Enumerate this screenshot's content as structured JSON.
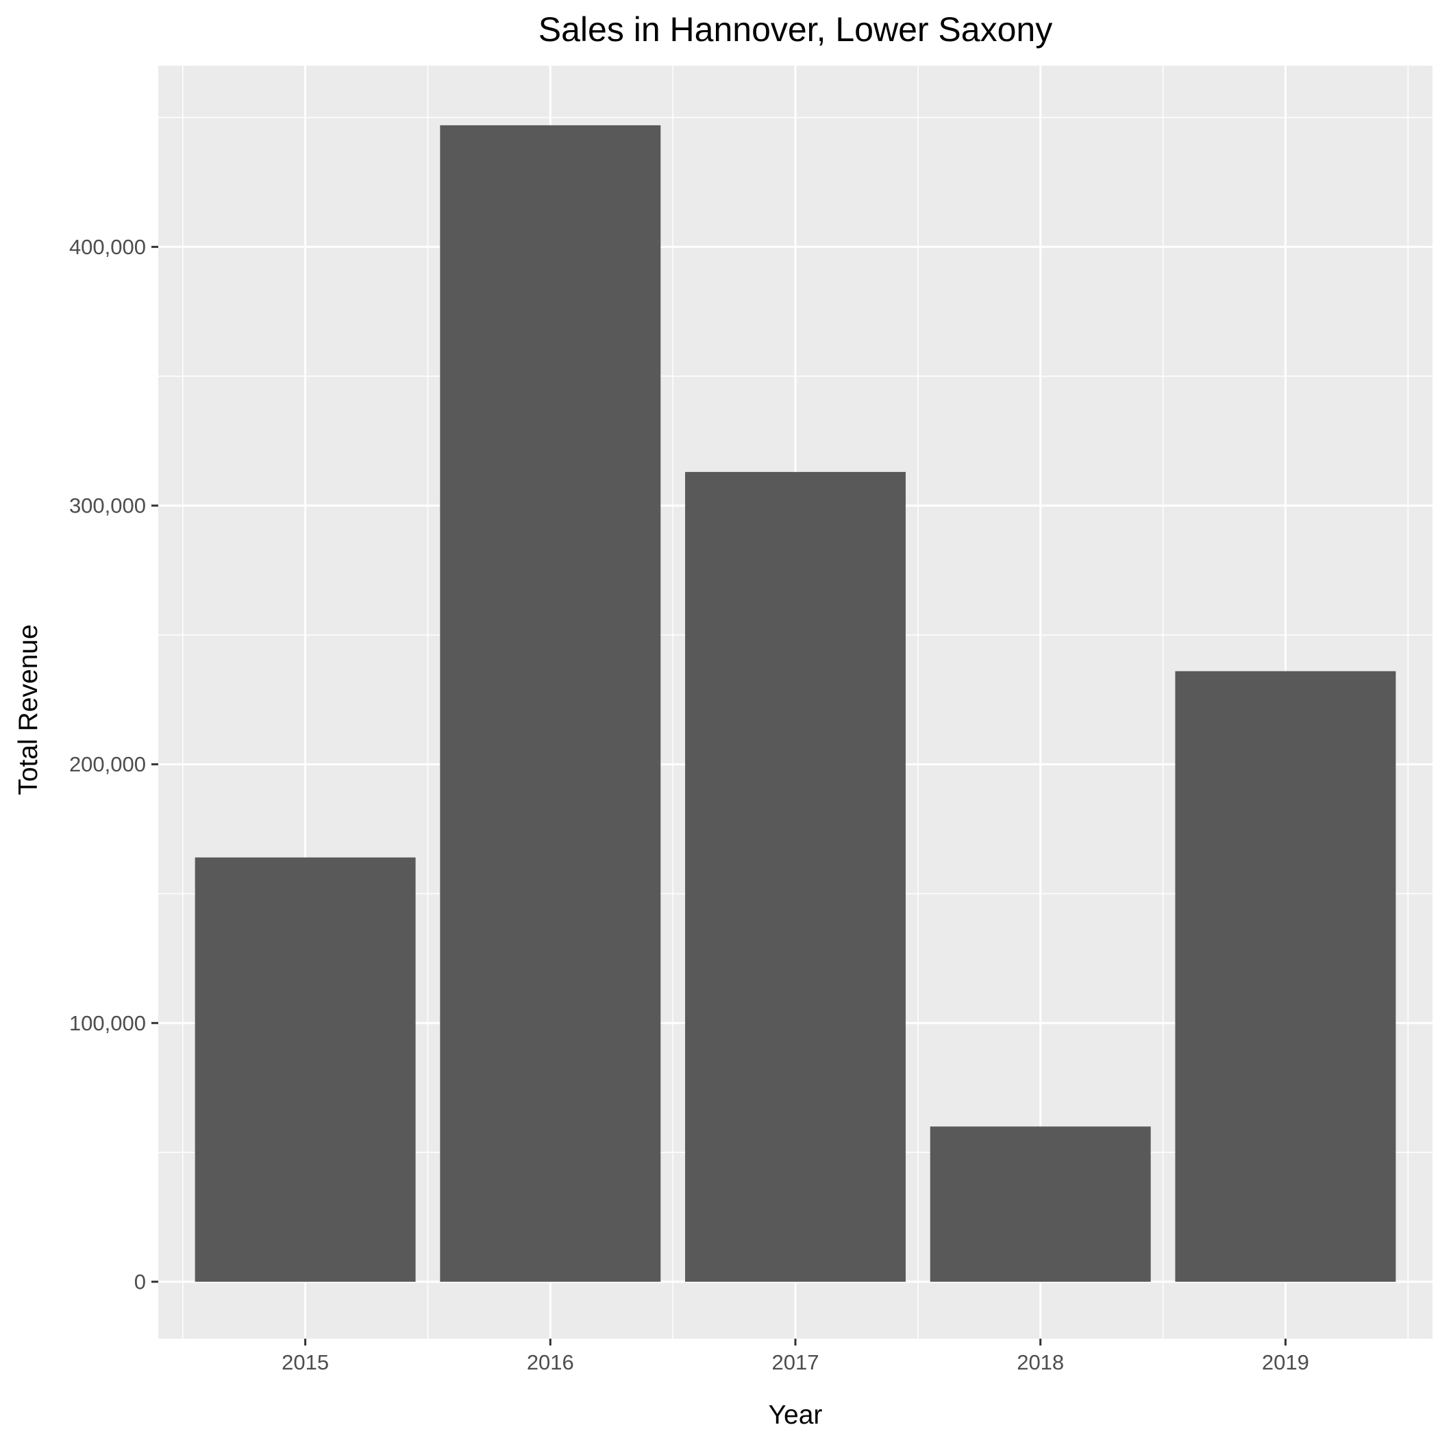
{
  "chart_data": {
    "type": "bar",
    "title": "Sales in Hannover, Lower Saxony",
    "xlabel": "Year",
    "ylabel": "Total Revenue",
    "categories": [
      "2015",
      "2016",
      "2017",
      "2018",
      "2019"
    ],
    "values": [
      164000,
      447000,
      313000,
      60000,
      236000
    ],
    "ylim": [
      -22000,
      470000
    ],
    "yticks": [
      0,
      100000,
      200000,
      300000,
      400000
    ],
    "ytick_labels": [
      "0",
      "100,000",
      "200,000",
      "300,000",
      "400,000"
    ],
    "grid": true,
    "colors": {
      "bar": "#595959",
      "panel": "#ebebeb",
      "grid": "#ffffff",
      "tick": "#333333"
    }
  }
}
